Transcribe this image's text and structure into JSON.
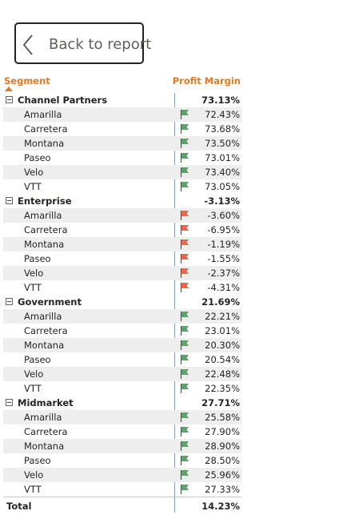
{
  "back_button": {
    "label": "Back to report"
  },
  "table": {
    "columns": {
      "segment": "Segment",
      "profit_margin": "Profit Margin"
    },
    "colors": {
      "header": "#e8771e",
      "positive_flag": "#5aa469",
      "negative_flag": "#f2624d"
    },
    "groups": [
      {
        "name": "Channel Partners",
        "value": "73.13%",
        "rows": [
          {
            "name": "Amarilla",
            "value": "72.43%",
            "flag": "green"
          },
          {
            "name": "Carretera",
            "value": "73.68%",
            "flag": "green"
          },
          {
            "name": "Montana",
            "value": "73.50%",
            "flag": "green"
          },
          {
            "name": "Paseo",
            "value": "73.01%",
            "flag": "green"
          },
          {
            "name": "Velo",
            "value": "73.40%",
            "flag": "green"
          },
          {
            "name": "VTT",
            "value": "73.05%",
            "flag": "green"
          }
        ]
      },
      {
        "name": "Enterprise",
        "value": "-3.13%",
        "rows": [
          {
            "name": "Amarilla",
            "value": "-3.60%",
            "flag": "red"
          },
          {
            "name": "Carretera",
            "value": "-6.95%",
            "flag": "red"
          },
          {
            "name": "Montana",
            "value": "-1.19%",
            "flag": "red"
          },
          {
            "name": "Paseo",
            "value": "-1.55%",
            "flag": "red"
          },
          {
            "name": "Velo",
            "value": "-2.37%",
            "flag": "red"
          },
          {
            "name": "VTT",
            "value": "-4.31%",
            "flag": "red"
          }
        ]
      },
      {
        "name": "Government",
        "value": "21.69%",
        "rows": [
          {
            "name": "Amarilla",
            "value": "22.21%",
            "flag": "green"
          },
          {
            "name": "Carretera",
            "value": "23.01%",
            "flag": "green"
          },
          {
            "name": "Montana",
            "value": "20.30%",
            "flag": "green"
          },
          {
            "name": "Paseo",
            "value": "20.54%",
            "flag": "green"
          },
          {
            "name": "Velo",
            "value": "22.48%",
            "flag": "green"
          },
          {
            "name": "VTT",
            "value": "22.35%",
            "flag": "green"
          }
        ]
      },
      {
        "name": "Midmarket",
        "value": "27.71%",
        "rows": [
          {
            "name": "Amarilla",
            "value": "25.58%",
            "flag": "green"
          },
          {
            "name": "Carretera",
            "value": "27.90%",
            "flag": "green"
          },
          {
            "name": "Montana",
            "value": "28.90%",
            "flag": "green"
          },
          {
            "name": "Paseo",
            "value": "28.50%",
            "flag": "green"
          },
          {
            "name": "Velo",
            "value": "25.96%",
            "flag": "green"
          },
          {
            "name": "VTT",
            "value": "27.33%",
            "flag": "green"
          }
        ]
      }
    ],
    "total": {
      "name": "Total",
      "value": "14.23%"
    }
  }
}
